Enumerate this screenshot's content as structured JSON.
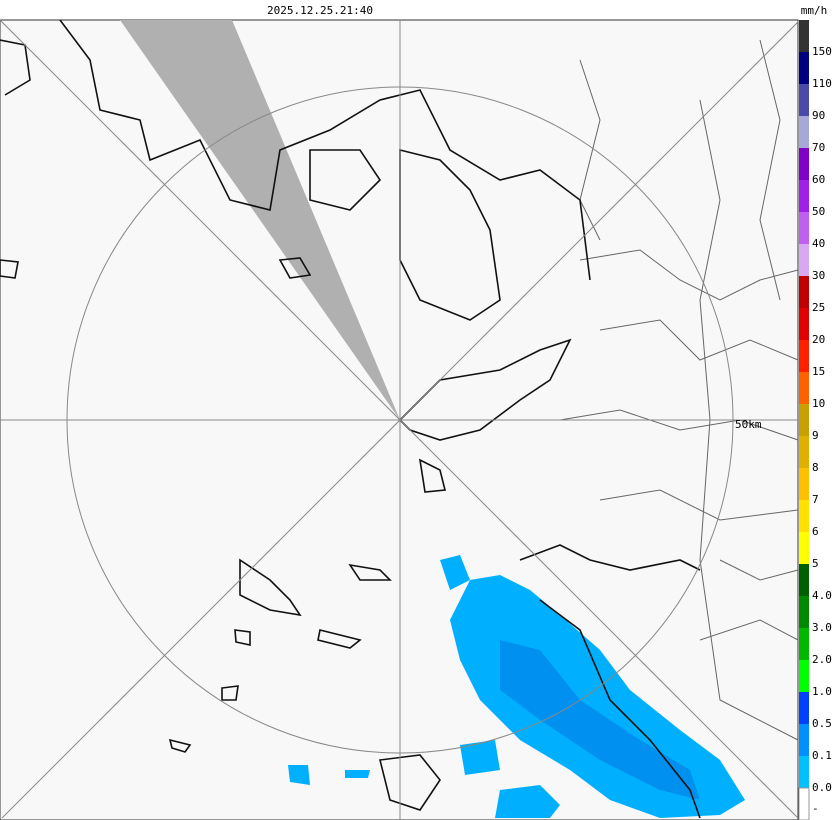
{
  "header": {
    "timestamp": "2025.12.25.21:40",
    "unit": "mm/h"
  },
  "map": {
    "range_label": "50km"
  },
  "scale": {
    "colors": [
      "#333333",
      "#000080",
      "#4a4aa8",
      "#a8a8d8",
      "#8000c8",
      "#a020e8",
      "#c060f0",
      "#d8a8f0",
      "#c00000",
      "#e00000",
      "#ff2000",
      "#ff6000",
      "#c8a000",
      "#e0b000",
      "#ffc000",
      "#ffe000",
      "#ffff00",
      "#006000",
      "#008800",
      "#00b800",
      "#00ff00",
      "#0040ff",
      "#0090ff",
      "#00c0ff",
      "#ffffff"
    ],
    "labels": [
      "150",
      "110",
      "90",
      "70",
      "60",
      "50",
      "40",
      "30",
      "25",
      "20",
      "15",
      "10",
      "9",
      "8",
      "7",
      "6",
      "5",
      "4.0",
      "3.0",
      "2.0",
      "1.0",
      "0.5",
      "0.1",
      "0.0",
      "-"
    ]
  }
}
